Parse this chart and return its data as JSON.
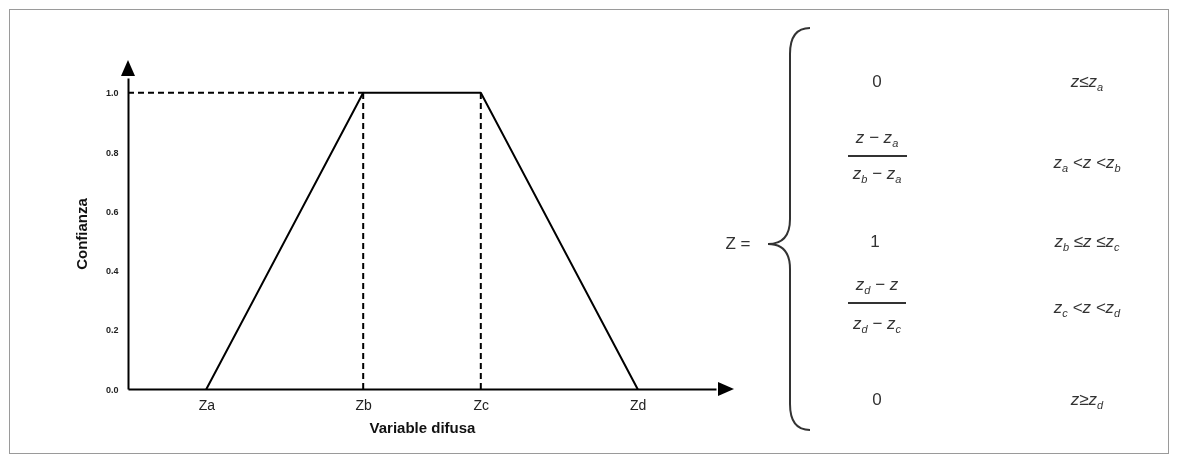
{
  "chart_data": {
    "type": "line",
    "xlabel": "Variable difusa",
    "ylabel": "Confianza",
    "categories": [
      null,
      null,
      "Za",
      null,
      null,
      null,
      "Zb",
      null,
      null,
      "Zc",
      null,
      null,
      null,
      "Zd",
      null,
      null
    ],
    "series": [
      {
        "x": [
          "Za",
          "Zb",
          "Zc",
          "Zd"
        ],
        "values": [
          0,
          1,
          1,
          0
        ],
        "color": "#000000"
      }
    ],
    "line_style": "solid",
    "ylim": [
      0,
      1.05
    ],
    "yticks": [
      {
        "value": 0,
        "label": "0.0"
      },
      0.2,
      0.4,
      0.6,
      0.8,
      {
        "value": 1,
        "label": "1.0"
      }
    ],
    "ref_lines": [
      {
        "axis": "y",
        "value": 1,
        "line_style": "dashed",
        "color": "#000000"
      },
      {
        "axis": "x",
        "value": "Zb",
        "line_style": "dashed",
        "color": "#000000"
      },
      {
        "axis": "x",
        "value": "Zc",
        "line_style": "dashed",
        "color": "#000000"
      }
    ],
    "annotations": [
      "Z =",
      "0",
      "z≤z$_{a}$",
      "z − z$_{a}$",
      "z$_{b}$ − z$_{a}$",
      "z$_{a}$ <z <z$_{b}$",
      "1",
      "z$_{b}$ ≤z ≤z$_{c}$",
      "z$_{d}$ − z",
      "z$_{d}$ − z$_{c}$",
      "z$_{c}$ <z <z$_{d}$",
      "0",
      "z≥z$_{d}$"
    ]
  }
}
